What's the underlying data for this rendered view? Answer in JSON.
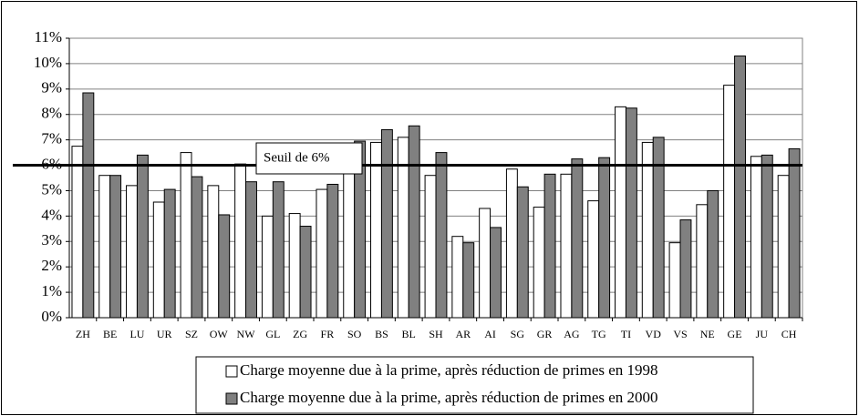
{
  "chart_data": {
    "type": "bar",
    "categories": [
      "ZH",
      "BE",
      "LU",
      "UR",
      "SZ",
      "OW",
      "NW",
      "GL",
      "ZG",
      "FR",
      "SO",
      "BS",
      "BL",
      "SH",
      "AR",
      "AI",
      "SG",
      "GR",
      "AG",
      "TG",
      "TI",
      "VD",
      "VS",
      "NE",
      "GE",
      "JU",
      "CH"
    ],
    "series": [
      {
        "name": "Charge moyenne due à la prime, après réduction de primes en 1998",
        "color": "#ffffff",
        "values": [
          6.75,
          5.6,
          5.2,
          4.55,
          6.5,
          5.2,
          6.05,
          4.0,
          4.1,
          5.05,
          6.2,
          6.9,
          7.1,
          5.6,
          3.2,
          4.3,
          5.85,
          4.35,
          5.65,
          4.6,
          8.3,
          6.9,
          2.95,
          4.45,
          9.15,
          6.35,
          5.6
        ]
      },
      {
        "name": "Charge moyenne due à la prime, après réduction de primes en 2000",
        "color": "#808080",
        "values": [
          8.85,
          5.6,
          6.4,
          5.05,
          5.55,
          4.05,
          5.35,
          5.35,
          3.6,
          5.25,
          6.95,
          7.4,
          7.55,
          6.5,
          2.95,
          3.55,
          5.15,
          5.65,
          6.25,
          6.3,
          8.25,
          7.1,
          3.85,
          5.0,
          10.3,
          6.4,
          6.65
        ]
      }
    ],
    "ylim": [
      0,
      11
    ],
    "yticks": [
      {
        "value": 0,
        "label": "0%"
      },
      {
        "value": 1,
        "label": "1%"
      },
      {
        "value": 2,
        "label": "2%"
      },
      {
        "value": 3,
        "label": "3%"
      },
      {
        "value": 4,
        "label": "4%"
      },
      {
        "value": 5,
        "label": "5%"
      },
      {
        "value": 6,
        "label": "6%"
      },
      {
        "value": 7,
        "label": "7%"
      },
      {
        "value": 8,
        "label": "8%"
      },
      {
        "value": 9,
        "label": "9%"
      },
      {
        "value": 10,
        "label": "10%"
      },
      {
        "value": 11,
        "label": "11%"
      }
    ],
    "grid": true,
    "threshold": {
      "value": 6,
      "label": "Seuil de 6%"
    },
    "legend": "bottom"
  }
}
